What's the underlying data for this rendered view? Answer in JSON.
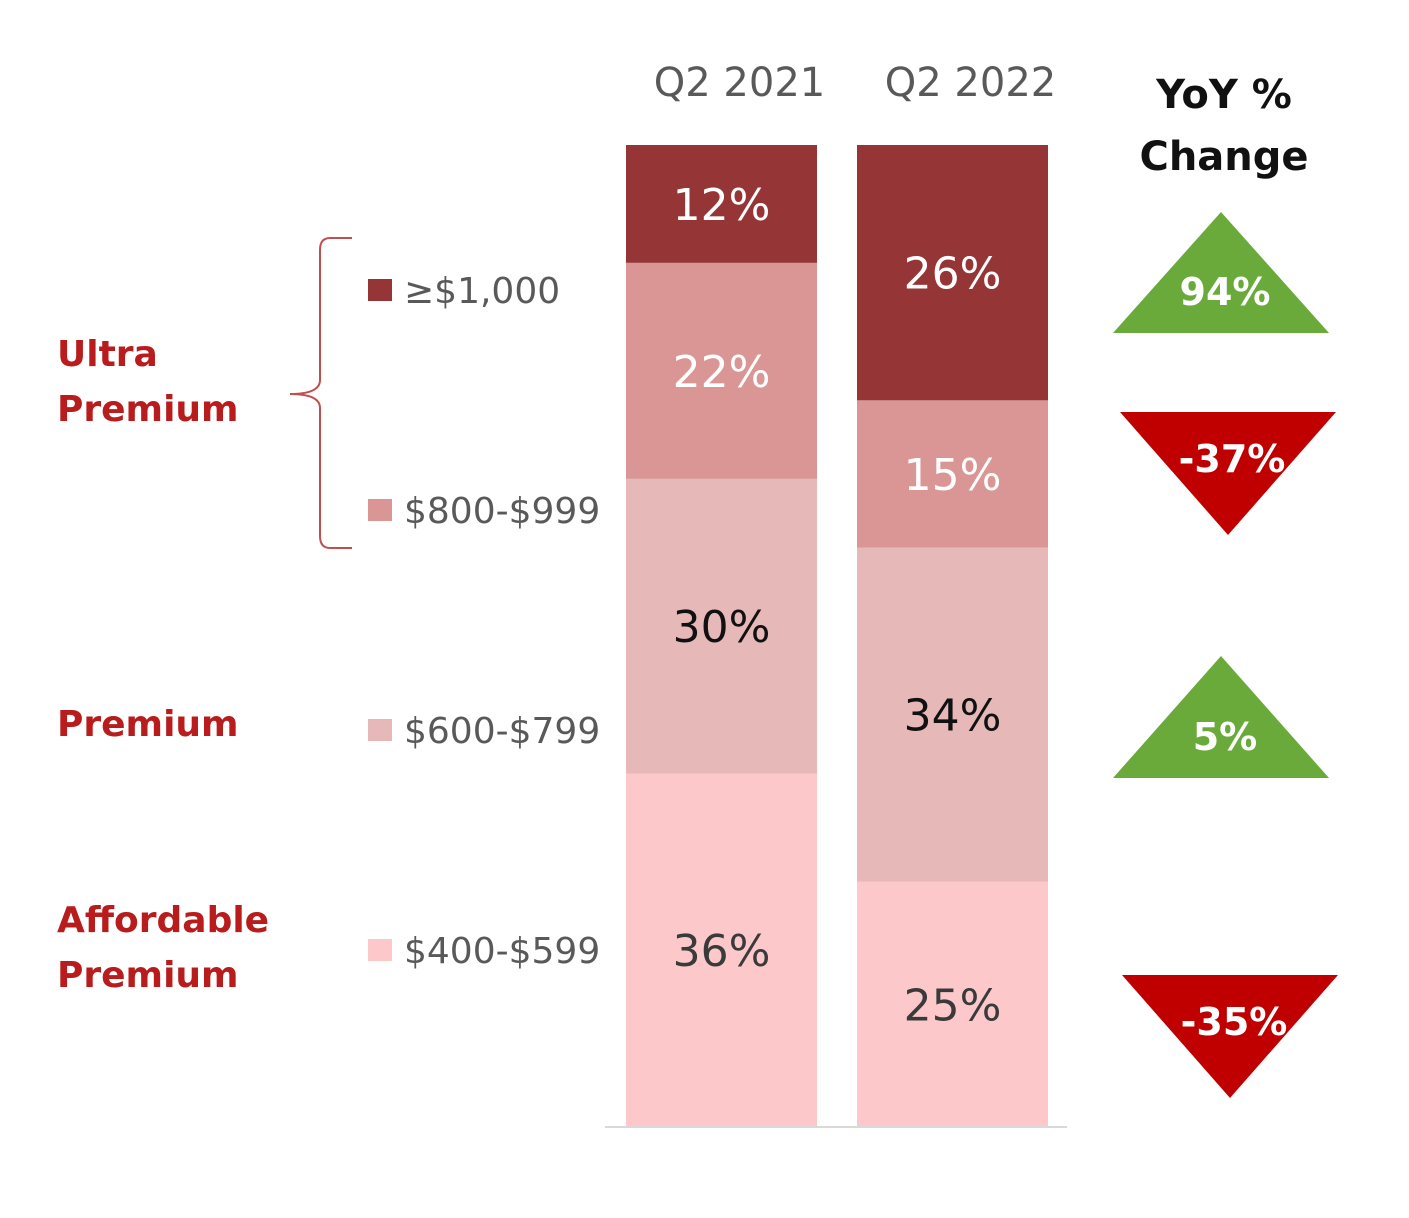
{
  "chart_data": {
    "type": "bar",
    "stacked": true,
    "stack_percent": true,
    "categories": [
      "Q2 2021",
      "Q2 2022"
    ],
    "series": [
      {
        "name": "$400-$599",
        "values": [
          36,
          25
        ],
        "labels": [
          "36%",
          "25%"
        ],
        "color": "#fcc8ca",
        "text_color": "#3a3a3a"
      },
      {
        "name": "$600-$799",
        "values": [
          30,
          34
        ],
        "labels": [
          "30%",
          "34%"
        ],
        "color": "#e6b8b8",
        "text_color": "#111111"
      },
      {
        "name": "$800-$999",
        "values": [
          22,
          15
        ],
        "labels": [
          "22%",
          "15%"
        ],
        "color": "#d99695",
        "text_color": "#ffffff"
      },
      {
        "name": "≥$1,000",
        "values": [
          12,
          26
        ],
        "labels": [
          "12%",
          "26%"
        ],
        "color": "#963535",
        "text_color": "#ffffff"
      }
    ],
    "legend": [
      {
        "label": "≥$1,000",
        "color": "#963535"
      },
      {
        "label": "$800-$999",
        "color": "#d99695"
      },
      {
        "label": "$600-$799",
        "color": "#e6b8b8"
      },
      {
        "label": "$400-$599",
        "color": "#fcc8ca"
      }
    ],
    "tiers": [
      {
        "lines": [
          "Ultra",
          "Premium"
        ],
        "covers": [
          "≥$1,000",
          "$800-$999"
        ]
      },
      {
        "lines": [
          "Premium"
        ],
        "covers": [
          "$600-$799"
        ]
      },
      {
        "lines": [
          "Affordable",
          "Premium"
        ],
        "covers": [
          "$400-$599"
        ]
      }
    ],
    "yoy": {
      "title_lines": [
        "YoY %",
        "Change"
      ],
      "items": [
        {
          "series": "≥$1,000",
          "value": 94,
          "label": "94%",
          "direction": "up",
          "color": "#6aaa3a"
        },
        {
          "series": "$800-$999",
          "value": -37,
          "label": "-37%",
          "direction": "down",
          "color": "#c00000"
        },
        {
          "series": "$600-$799",
          "value": 5,
          "label": "5%",
          "direction": "up",
          "color": "#6aaa3a"
        },
        {
          "series": "$400-$599",
          "value": -35,
          "label": "-35%",
          "direction": "down",
          "color": "#c00000"
        }
      ]
    },
    "ylim": [
      0,
      100
    ],
    "title": "",
    "xlabel": "",
    "ylabel": ""
  }
}
